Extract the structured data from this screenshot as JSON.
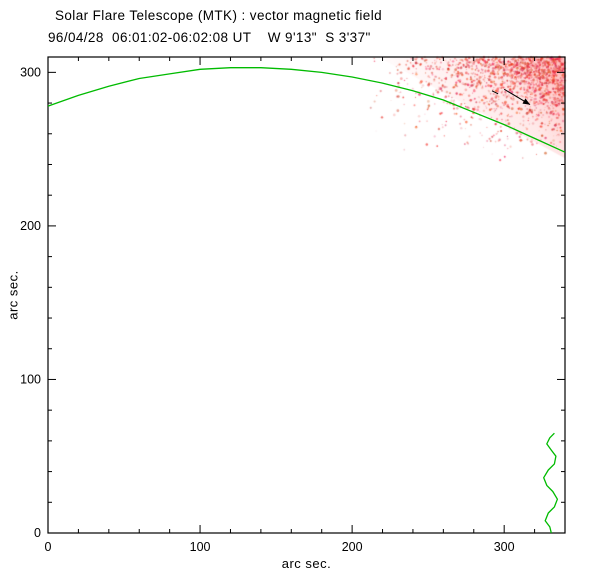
{
  "chart_data": {
    "type": "line",
    "title": "Solar Flare Telescope (MTK) : vector magnetic field",
    "subtitle": "96/04/28  06:01:02-06:02:08 UT    W 9'13\"  S 3'37\"",
    "xlabel": "arc sec.",
    "ylabel": "arc sec.",
    "xlim": [
      0,
      340
    ],
    "ylim": [
      0,
      310
    ],
    "xticks": [
      0,
      100,
      200,
      300
    ],
    "yticks": [
      0,
      100,
      200,
      300
    ],
    "minor_tick_interval": 20,
    "grid": false,
    "frame_color": "#000000",
    "limb_color": "#00bb00",
    "field_region_color": "#ff0000",
    "series": [
      {
        "name": "solar-limb-curve",
        "points": [
          [
            0,
            278
          ],
          [
            20,
            285
          ],
          [
            40,
            291
          ],
          [
            60,
            296
          ],
          [
            80,
            299
          ],
          [
            100,
            302
          ],
          [
            120,
            303
          ],
          [
            140,
            303
          ],
          [
            160,
            302
          ],
          [
            180,
            300
          ],
          [
            200,
            297
          ],
          [
            220,
            293
          ],
          [
            240,
            288
          ],
          [
            260,
            282
          ],
          [
            280,
            274
          ],
          [
            300,
            266
          ],
          [
            320,
            257
          ],
          [
            340,
            248
          ]
        ]
      },
      {
        "name": "limb-contour-lower-right",
        "points": [
          [
            331,
            0
          ],
          [
            330,
            4
          ],
          [
            327,
            8
          ],
          [
            329,
            13
          ],
          [
            333,
            17
          ],
          [
            335,
            22
          ],
          [
            332,
            27
          ],
          [
            328,
            31
          ],
          [
            326,
            36
          ],
          [
            329,
            41
          ],
          [
            333,
            45
          ],
          [
            334,
            50
          ],
          [
            331,
            54
          ],
          [
            328,
            58
          ],
          [
            330,
            62
          ],
          [
            333,
            65
          ]
        ]
      }
    ],
    "field_region": {
      "x_range": [
        190,
        340
      ],
      "y_range": [
        235,
        310
      ],
      "description": "speckled red magnetogram region, densest at top-right corner"
    },
    "annotations": [
      {
        "type": "arrow",
        "from": [
          300,
          289
        ],
        "to": [
          317,
          279
        ],
        "color": "#000000"
      },
      {
        "type": "dash",
        "from": [
          292,
          288
        ],
        "to": [
          296,
          286
        ],
        "color": "#000000"
      }
    ]
  }
}
